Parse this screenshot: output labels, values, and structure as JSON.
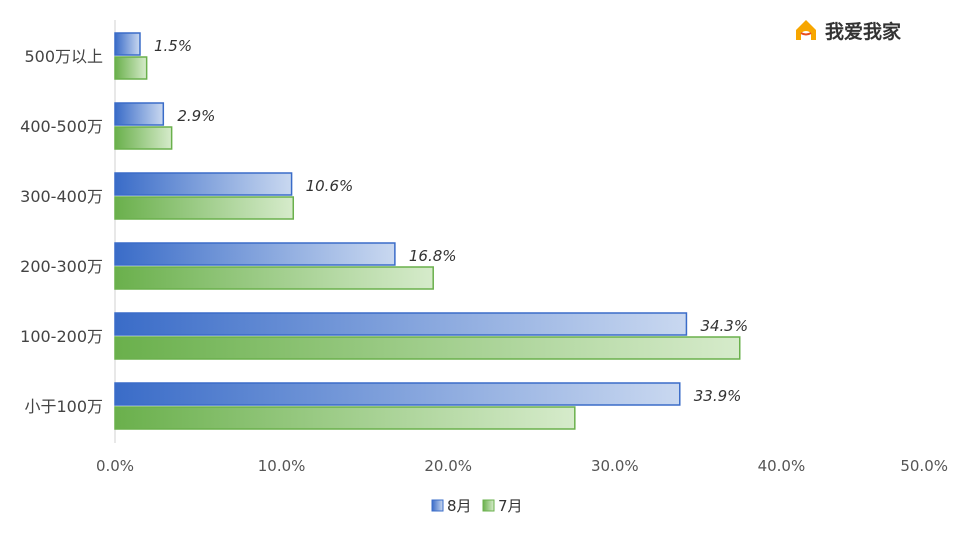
{
  "brand": {
    "name": "我爱我家",
    "icon": "house-logo-icon",
    "logo_color": "#f7a600"
  },
  "chart_data": {
    "type": "bar",
    "orientation": "horizontal",
    "categories": [
      "500万以上",
      "400-500万",
      "300-400万",
      "200-300万",
      "100-200万",
      "小于100万"
    ],
    "series": [
      {
        "name": "8月",
        "values": [
          1.5,
          2.9,
          10.6,
          16.8,
          34.3,
          33.9
        ],
        "color": "#3a6cc8",
        "labels": [
          "1.5%",
          "2.9%",
          "10.6%",
          "16.8%",
          "34.3%",
          "33.9%"
        ]
      },
      {
        "name": "7月",
        "values": [
          1.9,
          3.4,
          10.7,
          19.1,
          37.5,
          27.6
        ],
        "color": "#6ab04c"
      }
    ],
    "xlim": [
      0,
      50
    ],
    "xticks": [
      "0.0%",
      "10.0%",
      "20.0%",
      "30.0%",
      "40.0%",
      "50.0%"
    ],
    "grid": false,
    "legend": "bottom-center"
  }
}
